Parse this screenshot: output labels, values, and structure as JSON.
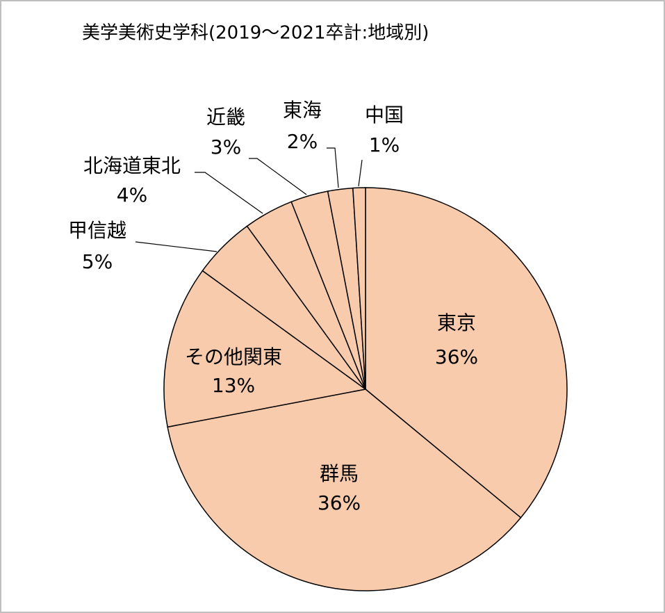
{
  "chart_data": {
    "type": "pie",
    "title": "美学美術史学科(2019〜2021卒計:地域別)",
    "categories": [
      "東京",
      "群馬",
      "その他関東",
      "甲信越",
      "北海道東北",
      "近畿",
      "東海",
      "中国"
    ],
    "values": [
      36,
      36,
      13,
      5,
      4,
      3,
      2,
      1
    ],
    "value_labels": [
      "36%",
      "36%",
      "13%",
      "5%",
      "4%",
      "3%",
      "2%",
      "1%"
    ],
    "color": "#f8cbad"
  }
}
